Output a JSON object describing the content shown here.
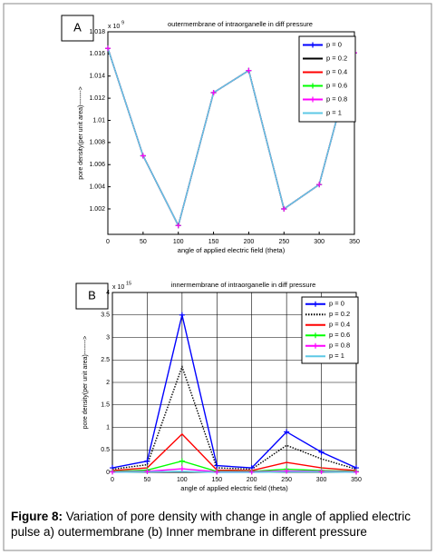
{
  "chart_data": [
    {
      "type": "line",
      "panel_label": "A",
      "title": "outermembrane of intraorganelle in diff pressure",
      "y_multiplier": "x 10",
      "y_multiplier_exp": "9",
      "x_label": "angle of applied electric field (theta)",
      "y_label": "pore density(per unit area)------->",
      "x": [
        0,
        50,
        100,
        150,
        200,
        250,
        300,
        350
      ],
      "xlim": [
        0,
        350
      ],
      "xticks": [
        0,
        50,
        100,
        150,
        200,
        250,
        300,
        350
      ],
      "ylim": [
        0.9997,
        1.018
      ],
      "yticks": [
        1.002,
        1.004,
        1.006,
        1.008,
        1.01,
        1.012,
        1.014,
        1.016,
        1.018
      ],
      "grid": false,
      "legend": "upper right",
      "series": [
        {
          "name": "p = 0",
          "color": "#0000ff",
          "marker": "plus",
          "values": [
            1.0165,
            1.0068,
            1.0005,
            1.0125,
            1.0145,
            1.002,
            1.0042,
            1.0161
          ]
        },
        {
          "name": "p = 0.2",
          "color": "#000000",
          "values": [
            1.0165,
            1.0068,
            1.0005,
            1.0125,
            1.0145,
            1.002,
            1.0042,
            1.0161
          ]
        },
        {
          "name": "p = 0.4",
          "color": "#ff0000",
          "values": [
            1.0165,
            1.0068,
            1.0005,
            1.0125,
            1.0145,
            1.002,
            1.0042,
            1.0161
          ]
        },
        {
          "name": "p = 0.6",
          "color": "#00ff00",
          "marker": "plus",
          "values": [
            1.0165,
            1.0068,
            1.0005,
            1.0125,
            1.0145,
            1.002,
            1.0042,
            1.0161
          ]
        },
        {
          "name": "p = 0.8",
          "color": "#ff00ff",
          "marker": "plus",
          "values": [
            1.0165,
            1.0068,
            1.0005,
            1.0125,
            1.0145,
            1.002,
            1.0042,
            1.0161
          ]
        },
        {
          "name": "p = 1",
          "color": "#5ec8e6",
          "values": [
            1.0165,
            1.0068,
            1.0005,
            1.0125,
            1.0145,
            1.002,
            1.0042,
            1.0161
          ]
        }
      ]
    },
    {
      "type": "line",
      "panel_label": "B",
      "title": "innermembrane of intraorganelle in diff pressure",
      "y_multiplier": "x 10",
      "y_multiplier_exp": "15",
      "x_label": "angle of applied electric field (theta)",
      "y_label": "pore density(per unit area)------->",
      "x": [
        0,
        50,
        100,
        150,
        200,
        250,
        300,
        350
      ],
      "xlim": [
        0,
        350
      ],
      "xticks": [
        0,
        50,
        100,
        150,
        200,
        250,
        300,
        350
      ],
      "ylim": [
        0,
        4
      ],
      "yticks": [
        0,
        0.5,
        1,
        1.5,
        2,
        2.5,
        3,
        3.5,
        4
      ],
      "grid": true,
      "legend": "upper right",
      "series": [
        {
          "name": "p = 0",
          "color": "#0000ff",
          "marker": "plus",
          "values": [
            0.1,
            0.25,
            3.5,
            0.15,
            0.1,
            0.9,
            0.45,
            0.1
          ]
        },
        {
          "name": "p = 0.2",
          "color": "#000000",
          "line_style": "dotted",
          "values": [
            0.07,
            0.17,
            2.35,
            0.1,
            0.07,
            0.6,
            0.3,
            0.07
          ]
        },
        {
          "name": "p = 0.4",
          "color": "#ff0000",
          "values": [
            0.04,
            0.1,
            0.85,
            0.05,
            0.04,
            0.22,
            0.1,
            0.04
          ]
        },
        {
          "name": "p = 0.6",
          "color": "#00ff00",
          "marker": "plus",
          "values": [
            0.02,
            0.05,
            0.25,
            0.02,
            0.02,
            0.07,
            0.04,
            0.02
          ]
        },
        {
          "name": "p = 0.8",
          "color": "#ff00ff",
          "marker": "plus",
          "values": [
            0.01,
            0.02,
            0.08,
            0.01,
            0.01,
            0.03,
            0.02,
            0.01
          ]
        },
        {
          "name": "p = 1",
          "color": "#5ec8e6",
          "values": [
            0,
            0.01,
            0.02,
            0,
            0,
            0.01,
            0.01,
            0
          ]
        }
      ]
    }
  ],
  "caption": {
    "label": "Figure 8:",
    "text": "Variation of pore density with change in angle of applied electric pulse a) outermembrane (b) Inner membrane in different pressure"
  }
}
